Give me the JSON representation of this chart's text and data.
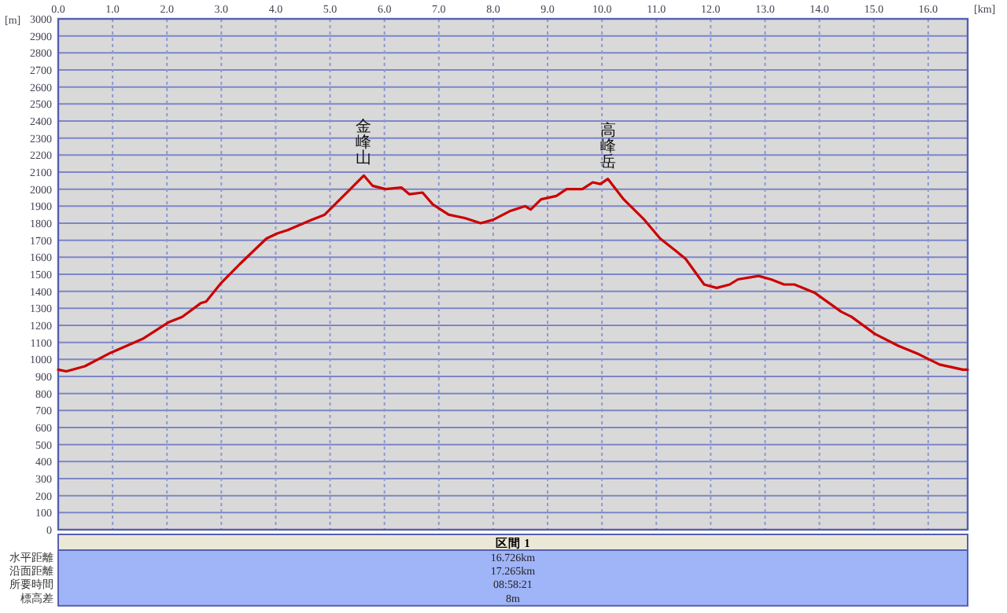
{
  "chart_data": {
    "type": "line",
    "xlabel": "[km]",
    "ylabel": "[m]",
    "x": [
      0,
      0.15,
      0.49,
      0.97,
      1.55,
      2.04,
      2.28,
      2.62,
      2.72,
      3.0,
      3.34,
      3.83,
      4.03,
      4.22,
      4.66,
      4.9,
      5.15,
      5.34,
      5.62,
      5.78,
      6.02,
      6.31,
      6.46,
      6.7,
      6.89,
      7.18,
      7.48,
      7.77,
      8.0,
      8.3,
      8.59,
      8.69,
      8.88,
      9.16,
      9.35,
      9.64,
      9.83,
      9.97,
      10.11,
      10.4,
      10.78,
      11.07,
      11.35,
      11.54,
      11.88,
      12.11,
      12.35,
      12.5,
      12.88,
      13.11,
      13.35,
      13.54,
      13.92,
      14.4,
      14.59,
      15.02,
      15.45,
      15.83,
      16.21,
      16.64,
      16.726
    ],
    "series": [
      {
        "color": "#cc0000",
        "values": [
          940,
          930,
          960,
          1040,
          1120,
          1220,
          1250,
          1330,
          1340,
          1450,
          1560,
          1710,
          1740,
          1760,
          1820,
          1850,
          1930,
          1990,
          2080,
          2020,
          2000,
          2010,
          1970,
          1980,
          1910,
          1850,
          1830,
          1800,
          1820,
          1870,
          1900,
          1880,
          1940,
          1960,
          2000,
          2000,
          2040,
          2030,
          2060,
          1940,
          1820,
          1710,
          1640,
          1590,
          1440,
          1420,
          1440,
          1470,
          1490,
          1470,
          1440,
          1440,
          1390,
          1280,
          1250,
          1150,
          1080,
          1030,
          970,
          940,
          940
        ]
      }
    ],
    "xlim": [
      0,
      16.726
    ],
    "ylim": [
      0,
      3000
    ],
    "xticks": [
      {
        "value": 0,
        "label": "0.0"
      },
      {
        "value": 1,
        "label": "1.0"
      },
      {
        "value": 2,
        "label": "2.0"
      },
      {
        "value": 3,
        "label": "3.0"
      },
      {
        "value": 4,
        "label": "4.0"
      },
      {
        "value": 5,
        "label": "5.0"
      },
      {
        "value": 6,
        "label": "6.0"
      },
      {
        "value": 7,
        "label": "7.0"
      },
      {
        "value": 8,
        "label": "8.0"
      },
      {
        "value": 9,
        "label": "9.0"
      },
      {
        "value": 10,
        "label": "10.0"
      },
      {
        "value": 11,
        "label": "11.0"
      },
      {
        "value": 12,
        "label": "12.0"
      },
      {
        "value": 13,
        "label": "13.0"
      },
      {
        "value": 14,
        "label": "14.0"
      },
      {
        "value": 15,
        "label": "15.0"
      },
      {
        "value": 16,
        "label": "16.0"
      }
    ],
    "yticks": [
      0,
      100,
      200,
      300,
      400,
      500,
      600,
      700,
      800,
      900,
      1000,
      1100,
      1200,
      1300,
      1400,
      1500,
      1600,
      1700,
      1800,
      1900,
      2000,
      2100,
      2200,
      2300,
      2400,
      2500,
      2600,
      2700,
      2800,
      2900,
      3000
    ],
    "grid": true,
    "marker": "none",
    "line_style": "solid",
    "annotations": [
      {
        "text": "金峰山",
        "x": 5.62,
        "y": 2080
      },
      {
        "text": "高峰岳",
        "x": 10.11,
        "y": 2060
      },
      "区間 1",
      "水平距離",
      "16.726km",
      "沿面距離",
      "17.265km",
      "所要時間",
      "08:58:21",
      "標高差",
      "8m"
    ]
  }
}
